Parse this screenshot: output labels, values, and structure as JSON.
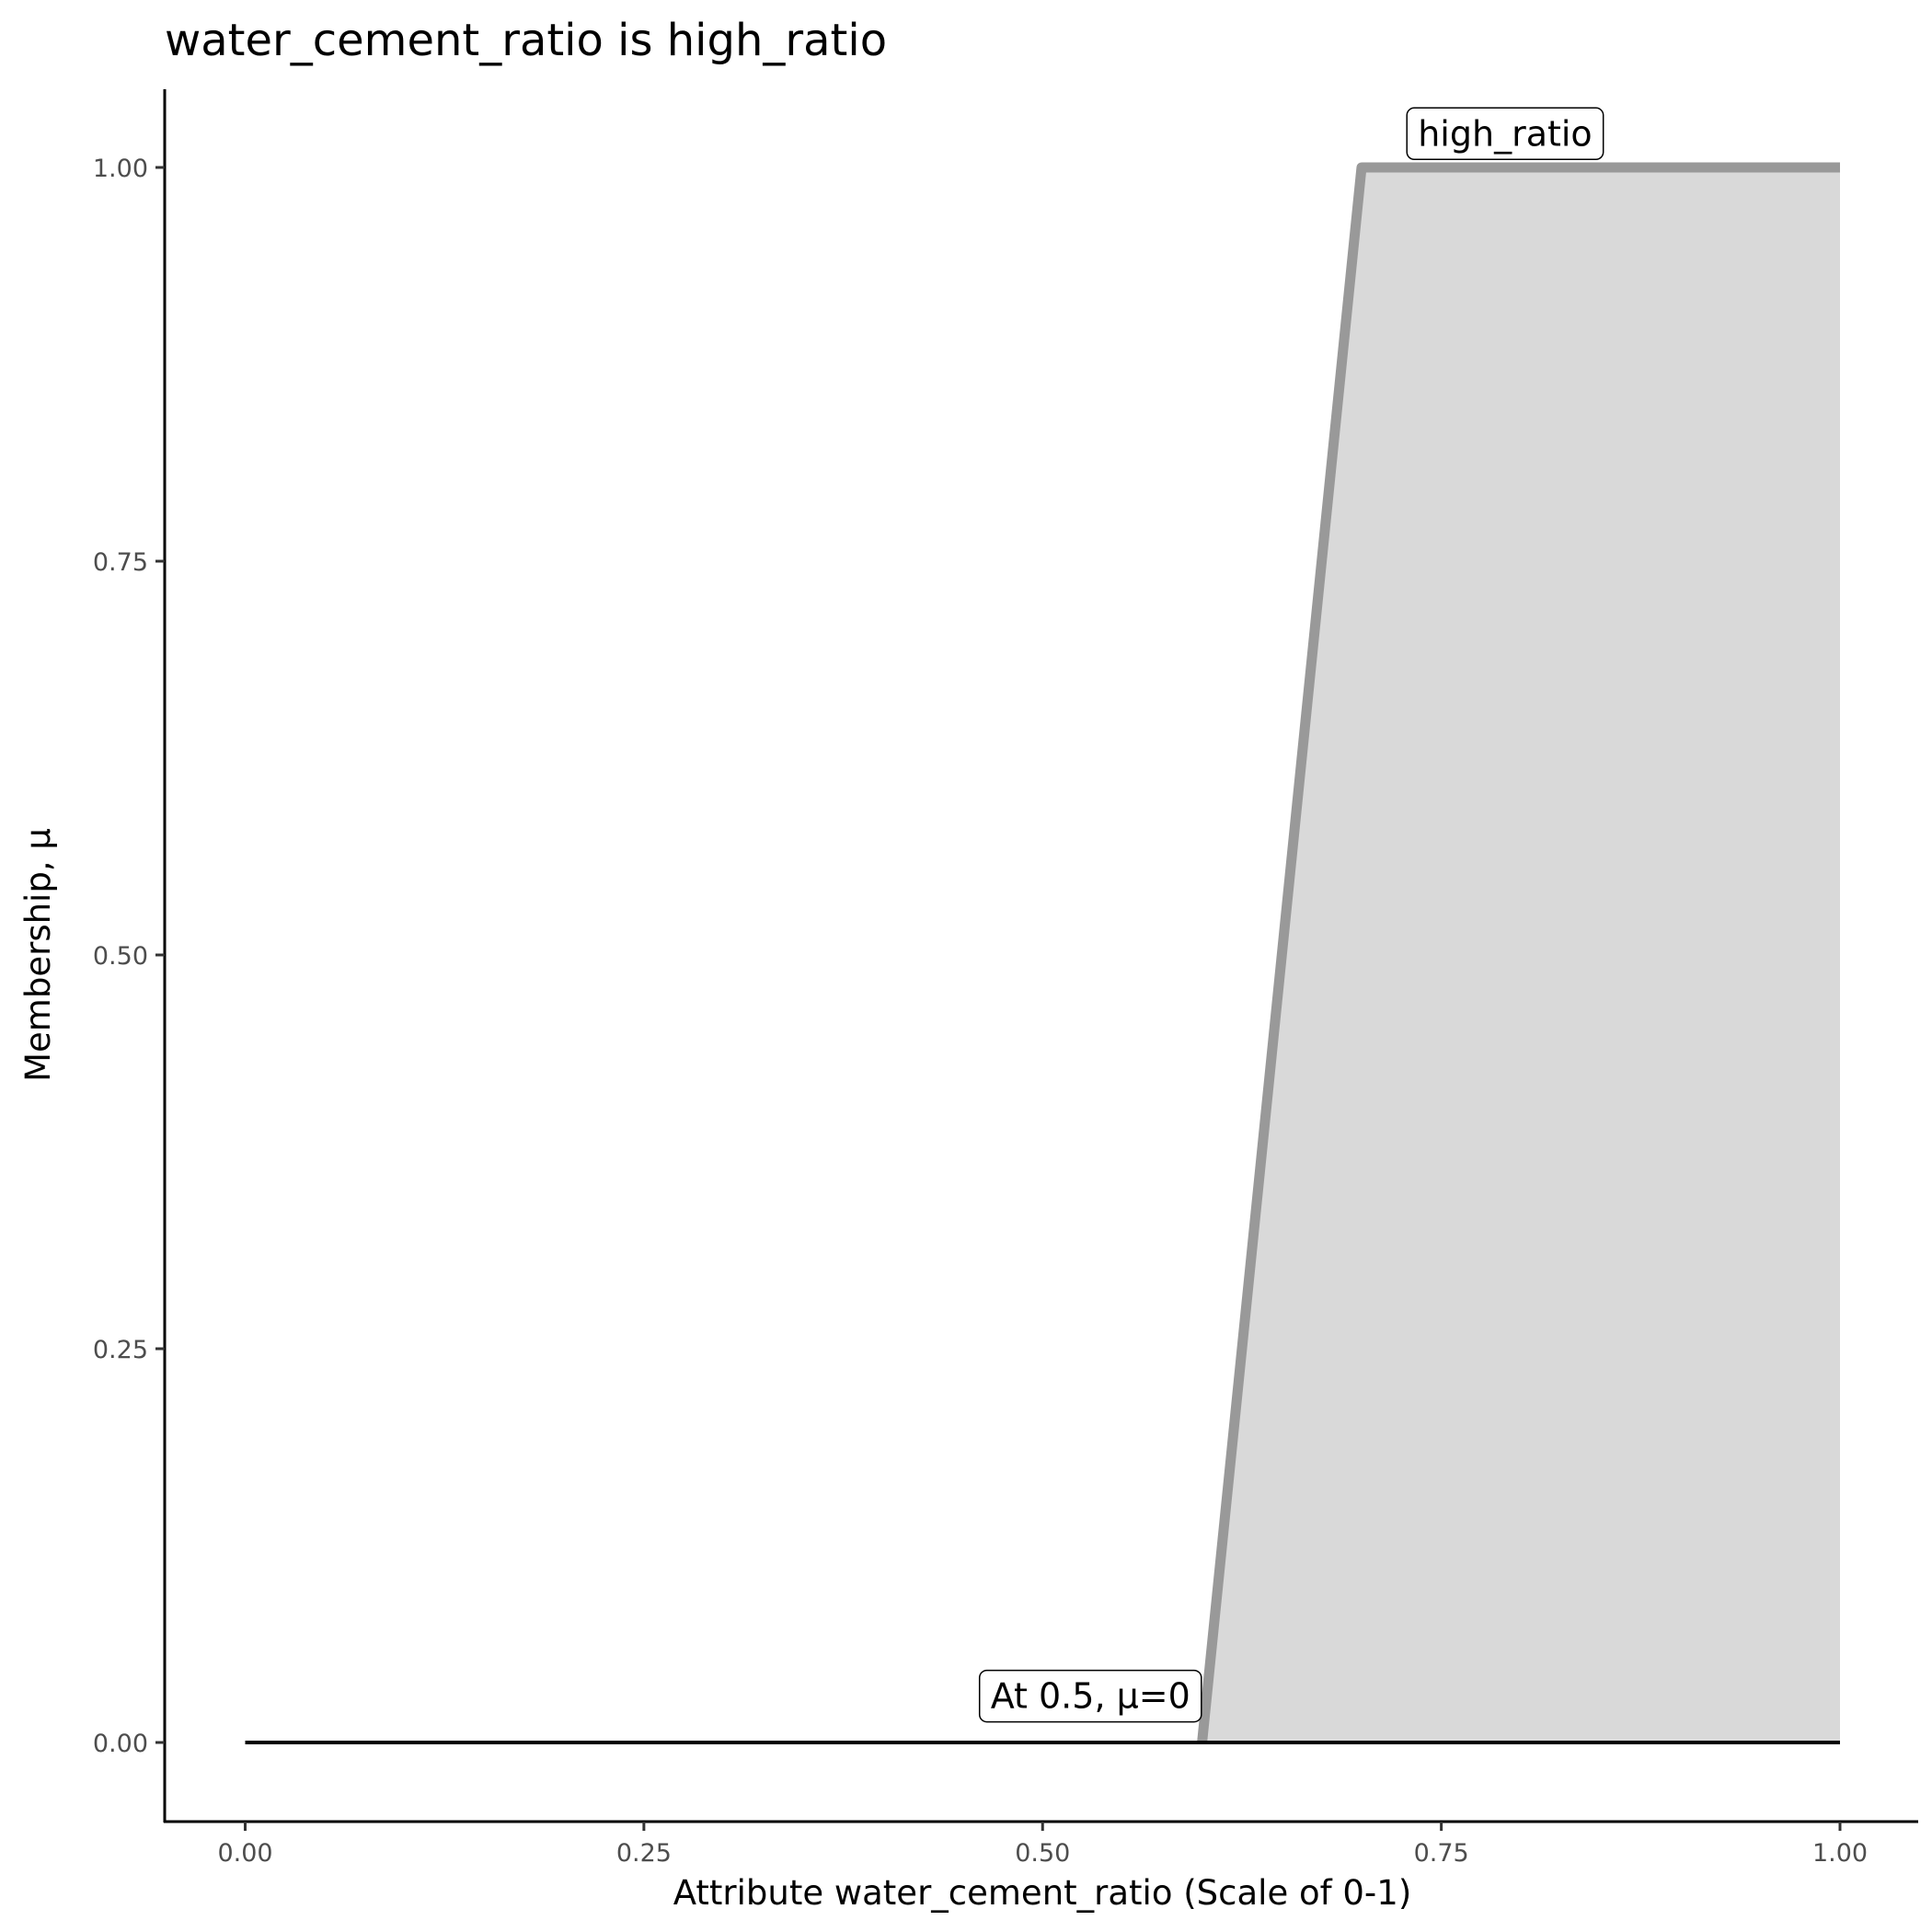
{
  "chart_data": {
    "type": "area",
    "title": "water_cement_ratio is high_ratio",
    "xlabel": "Attribute water_cement_ratio (Scale of 0-1)",
    "ylabel": "Membership, μ",
    "xlim": [
      0,
      1
    ],
    "ylim": [
      0,
      1
    ],
    "xticks": [
      "0.00",
      "0.25",
      "0.50",
      "0.75",
      "1.00"
    ],
    "yticks": [
      "0.00",
      "0.25",
      "0.50",
      "0.75",
      "1.00"
    ],
    "grid": false,
    "series": [
      {
        "name": "high_ratio",
        "x": [
          0.6,
          0.7,
          1.0
        ],
        "y": [
          0,
          1,
          1
        ],
        "color": "#999999",
        "fill": "#d9d9d9"
      }
    ],
    "baseline": {
      "x": [
        0,
        1
      ],
      "y": [
        0,
        0
      ],
      "color": "#000000"
    },
    "annotations": [
      {
        "text": "high_ratio",
        "x": 0.79,
        "y": 1.02
      },
      {
        "text": "At 0.5, μ=0",
        "x": 0.53,
        "y": 0.028
      }
    ]
  }
}
